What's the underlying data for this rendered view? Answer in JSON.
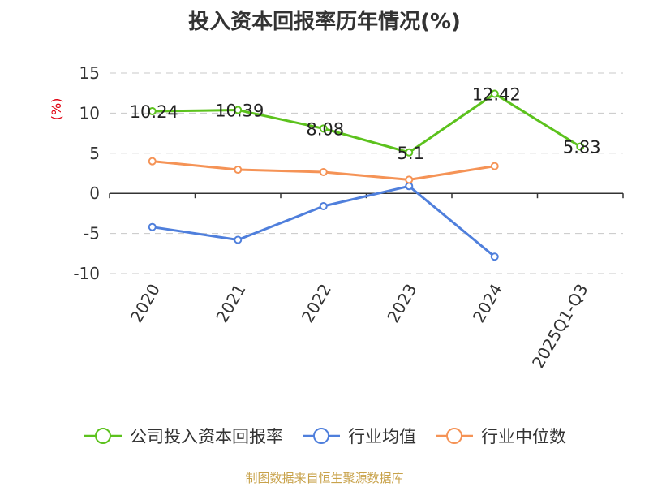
{
  "title": "投入资本回报率历年情况(%)",
  "source": "制图数据来自恒生聚源数据库",
  "chart_data": {
    "type": "line",
    "title": "投入资本回报率历年情况(%)",
    "ylabel": "(%)",
    "xlabel": "",
    "categories": [
      "2020",
      "2021",
      "2022",
      "2023",
      "2024",
      "2025Q1-Q3"
    ],
    "ylim": [
      -10,
      15
    ],
    "yticks": [
      15,
      10,
      5,
      0,
      -5,
      -10
    ],
    "grid": true,
    "legend_position": "bottom",
    "series": [
      {
        "name": "公司投入资本回报率",
        "color": "#5cc21d",
        "values": [
          10.24,
          10.39,
          8.08,
          5.1,
          12.42,
          5.83
        ],
        "labels": [
          "10.24",
          "10.39",
          "8.08",
          "5.1",
          "12.42",
          "5.83"
        ]
      },
      {
        "name": "行业均值",
        "color": "#4f7fdc",
        "values": [
          -4.2,
          -5.8,
          -1.6,
          0.9,
          -7.9,
          null
        ]
      },
      {
        "name": "行业中位数",
        "color": "#f59356",
        "values": [
          4.0,
          2.95,
          2.65,
          1.7,
          3.4,
          null
        ]
      }
    ]
  }
}
